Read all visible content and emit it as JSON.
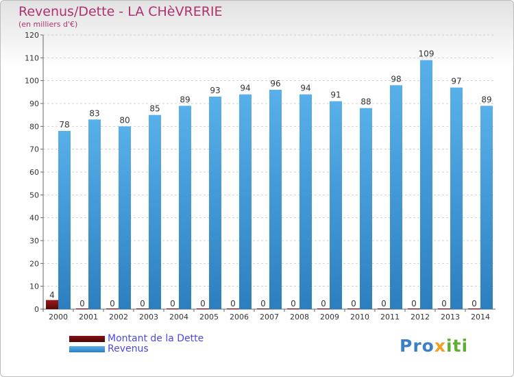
{
  "title": "Revenus/Dette - LA CHèVRERIE",
  "subtitle": "(en milliers d'€)",
  "logo": {
    "part1": "Pro",
    "part2": "x",
    "part3": "iti"
  },
  "colors": {
    "dette": "#6b0a0a",
    "revenus": "#4aa3e0",
    "revenus_dark": "#2c7fbf",
    "text": "#b03070",
    "legend_text": "#4a4ae0"
  },
  "chart_data": {
    "type": "bar",
    "title": "Revenus/Dette - LA CHèVRERIE",
    "subtitle": "(en milliers d'€)",
    "categories": [
      "2000",
      "2001",
      "2002",
      "2003",
      "2004",
      "2005",
      "2006",
      "2007",
      "2008",
      "2009",
      "2010",
      "2011",
      "2012",
      "2013",
      "2014"
    ],
    "series": [
      {
        "name": "Montant de la Dette",
        "values": [
          4,
          0,
          0,
          0,
          0,
          0,
          0,
          0,
          0,
          0,
          0,
          0,
          0,
          0,
          0
        ]
      },
      {
        "name": "Revenus",
        "values": [
          78,
          83,
          80,
          85,
          89,
          93,
          94,
          96,
          94,
          91,
          88,
          98,
          109,
          97,
          89
        ]
      }
    ],
    "ylim": [
      0,
      120
    ],
    "yticks": [
      0,
      10,
      20,
      30,
      40,
      50,
      60,
      70,
      80,
      90,
      100,
      110,
      120
    ],
    "grid": true,
    "legend": "bottom-left"
  }
}
